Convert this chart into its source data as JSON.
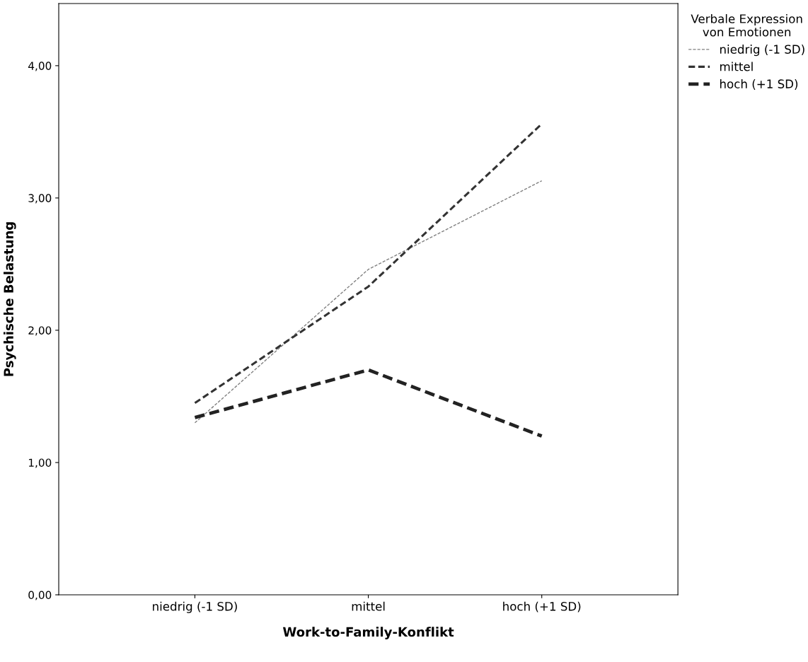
{
  "chart_data": {
    "type": "line",
    "xlabel": "Work-to-Family-Konflikt",
    "ylabel": "Psychische Belastung",
    "legend_title": "Verbale Expression\nvon Emotionen",
    "categories": [
      "niedrig (-1 SD)",
      "mittel",
      "hoch (+1 SD)"
    ],
    "series": [
      {
        "name": "niedrig (-1 SD)",
        "color": "#808080",
        "values": [
          1.3,
          2.46,
          3.13
        ]
      },
      {
        "name": "mittel",
        "color": "#333333",
        "values": [
          1.45,
          2.33,
          3.56
        ]
      },
      {
        "name": "hoch (+1 SD)",
        "color": "#222222",
        "values": [
          1.34,
          1.7,
          1.2
        ]
      }
    ],
    "ylim": [
      0,
      4.47
    ],
    "yticks": [
      {
        "value": 0,
        "label": "0,00"
      },
      {
        "value": 1,
        "label": "1,00"
      },
      {
        "value": 2,
        "label": "2,00"
      },
      {
        "value": 3,
        "label": "3,00"
      },
      {
        "value": 4,
        "label": "4,00"
      }
    ],
    "grid": false,
    "legend": "top right",
    "line_style": "dashed",
    "marker": "none"
  }
}
